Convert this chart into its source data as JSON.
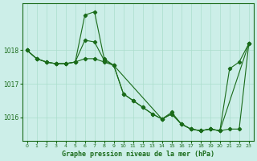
{
  "title": "Graphe pression niveau de la mer (hPa)",
  "bg_color": "#cceee8",
  "grid_color": "#aaddcc",
  "line_color": "#1a6b1a",
  "xlim": [
    -0.5,
    23.5
  ],
  "ylim": [
    1015.3,
    1019.4
  ],
  "yticks": [
    1016,
    1017,
    1018
  ],
  "xticks": [
    0,
    1,
    2,
    3,
    4,
    5,
    6,
    7,
    8,
    9,
    10,
    11,
    12,
    13,
    14,
    15,
    16,
    17,
    18,
    19,
    20,
    21,
    22,
    23
  ],
  "series1_x": [
    0,
    1,
    2,
    3,
    4,
    5,
    6,
    7,
    8,
    9,
    10,
    11,
    12,
    13,
    14,
    15,
    16,
    17,
    18,
    19,
    20,
    21,
    22,
    23
  ],
  "series1_y": [
    1018.0,
    1017.75,
    1017.65,
    1017.6,
    1017.6,
    1017.65,
    1019.05,
    1019.15,
    1017.75,
    1017.55,
    1016.7,
    1016.5,
    1016.3,
    1016.1,
    1015.95,
    1016.1,
    1015.8,
    1015.65,
    1015.6,
    1015.65,
    1015.6,
    1015.65,
    1015.65,
    1018.2
  ],
  "series2_x": [
    0,
    1,
    2,
    3,
    4,
    5,
    6,
    7,
    8,
    9,
    14,
    15,
    16,
    17,
    18,
    19,
    20,
    21,
    22,
    23
  ],
  "series2_y": [
    1018.0,
    1017.75,
    1017.65,
    1017.6,
    1017.6,
    1017.65,
    1018.3,
    1018.25,
    1017.7,
    1017.55,
    1015.95,
    1016.15,
    1015.8,
    1015.65,
    1015.6,
    1015.65,
    1015.6,
    1017.45,
    1017.65,
    1018.2
  ],
  "series3_x": [
    0,
    1,
    2,
    3,
    4,
    5,
    6,
    7,
    8,
    9,
    10,
    11,
    12,
    13,
    14,
    15,
    16,
    17,
    18,
    19,
    20,
    23
  ],
  "series3_y": [
    1018.0,
    1017.75,
    1017.65,
    1017.6,
    1017.6,
    1017.65,
    1017.75,
    1017.75,
    1017.65,
    1017.55,
    1016.7,
    1016.5,
    1016.3,
    1016.1,
    1015.95,
    1016.1,
    1015.8,
    1015.65,
    1015.6,
    1015.65,
    1015.6,
    1018.2
  ]
}
